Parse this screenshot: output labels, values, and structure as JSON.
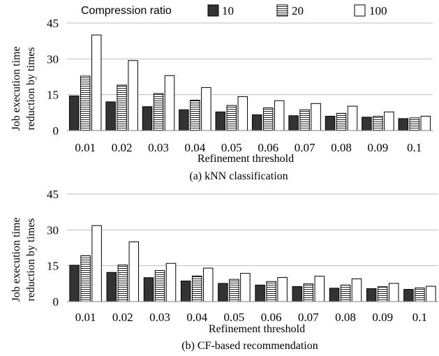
{
  "legend": {
    "title": "Compression ratio",
    "placement": "top",
    "entries": [
      "10",
      "20",
      "100"
    ]
  },
  "colors": {
    "series_10": "#333333",
    "series_20": "hatch-horizontal",
    "series_100": "#ffffff",
    "grid": "#bfbfbf",
    "axis": "#808080"
  },
  "chart_data": [
    {
      "type": "bar",
      "title": "(a) kNN classification",
      "xlabel": "Refinement threshold",
      "ylabel": "Job execution time reduction by times",
      "ylim": [
        0,
        45
      ],
      "yticks": [
        "0",
        "15",
        "30",
        "45"
      ],
      "grid": true,
      "categories": [
        "0.01",
        "0.02",
        "0.03",
        "0.04",
        "0.05",
        "0.06",
        "0.07",
        "0.08",
        "0.09",
        "0.1"
      ],
      "series": [
        {
          "name": "10",
          "values": [
            14.5,
            12,
            10,
            8.7,
            7.8,
            6.6,
            6.2,
            6.0,
            5.6,
            5.0
          ]
        },
        {
          "name": "20",
          "values": [
            22.8,
            19,
            15.5,
            12.7,
            10.5,
            9.5,
            8.7,
            7.2,
            6.0,
            5.3
          ]
        },
        {
          "name": "100",
          "values": [
            40,
            29.3,
            23,
            18,
            14.2,
            12.5,
            11.3,
            10.2,
            7.8,
            6.0
          ]
        }
      ]
    },
    {
      "type": "bar",
      "title": "(b) CF-based recommendation",
      "xlabel": "Refinement threshold",
      "ylabel": "Job execution time reduction by times",
      "ylim": [
        0,
        45
      ],
      "yticks": [
        "0",
        "15",
        "30",
        "45"
      ],
      "grid": true,
      "categories": [
        "0.01",
        "0.02",
        "0.03",
        "0.04",
        "0.05",
        "0.06",
        "0.07",
        "0.08",
        "0.09",
        "0.1"
      ],
      "series": [
        {
          "name": "10",
          "values": [
            15.2,
            12.2,
            10,
            8.6,
            7.6,
            6.9,
            6.3,
            5.6,
            5.4,
            5.1
          ]
        },
        {
          "name": "20",
          "values": [
            19.2,
            15.3,
            13,
            10.7,
            9.3,
            8.4,
            7.4,
            6.9,
            6.2,
            5.7
          ]
        },
        {
          "name": "100",
          "values": [
            31.8,
            25,
            16,
            14,
            11.8,
            10.1,
            10.6,
            9.5,
            7.6,
            6.4
          ]
        }
      ]
    }
  ]
}
